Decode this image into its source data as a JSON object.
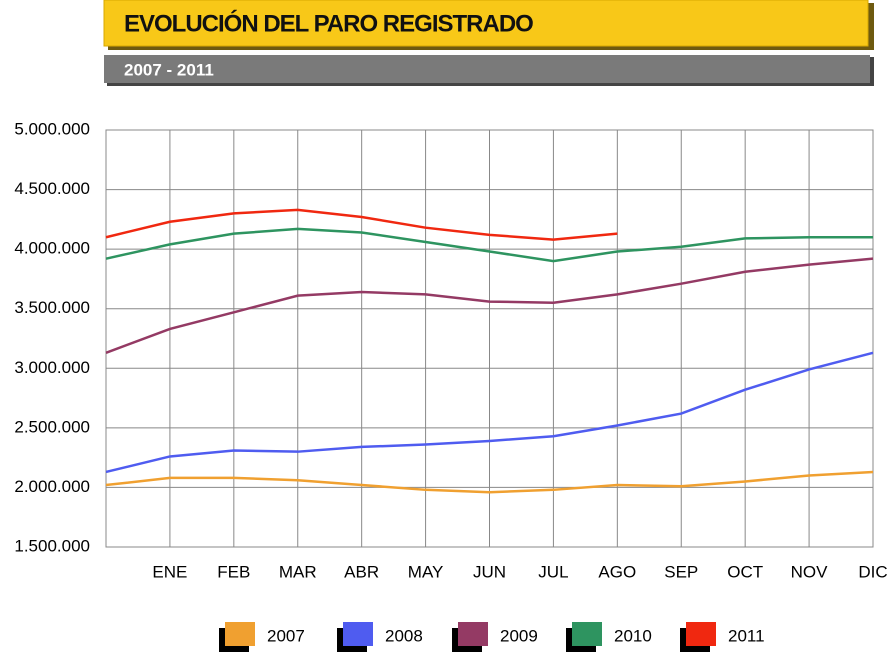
{
  "chart_data": {
    "type": "line",
    "title": "EVOLUCIÓN DEL PARO REGISTRADO",
    "subtitle": "2007 - 2011",
    "categories": [
      null,
      "ENE",
      "FEB",
      "MAR",
      "ABR",
      "MAY",
      "JUN",
      "JUL",
      "AGO",
      "SEP",
      "OCT",
      "NOV",
      "DIC"
    ],
    "ylim": [
      1500000,
      5000000
    ],
    "yticks": [
      {
        "value": 1500000,
        "label": "1.500.000"
      },
      {
        "value": 2000000,
        "label": "2.000.000"
      },
      {
        "value": 2500000,
        "label": "2.500.000"
      },
      {
        "value": 3000000,
        "label": "3.000.000"
      },
      {
        "value": 3500000,
        "label": "3.500.000"
      },
      {
        "value": 4000000,
        "label": "4.000.000"
      },
      {
        "value": 4500000,
        "label": "4.500.000"
      },
      {
        "value": 5000000,
        "label": "5.000.000"
      }
    ],
    "grid": true,
    "legend": "bottom",
    "series": [
      {
        "name": "2007",
        "color": "#f0a030",
        "values": [
          2020000,
          2080000,
          2080000,
          2060000,
          2020000,
          1980000,
          1960000,
          1980000,
          2020000,
          2010000,
          2050000,
          2100000,
          2130000
        ]
      },
      {
        "name": "2008",
        "color": "#4f5cf0",
        "values": [
          2130000,
          2260000,
          2310000,
          2300000,
          2340000,
          2360000,
          2390000,
          2430000,
          2520000,
          2620000,
          2820000,
          2990000,
          3130000
        ]
      },
      {
        "name": "2009",
        "color": "#943a64",
        "values": [
          3130000,
          3330000,
          3470000,
          3610000,
          3640000,
          3620000,
          3560000,
          3550000,
          3620000,
          3710000,
          3810000,
          3870000,
          3920000
        ]
      },
      {
        "name": "2010",
        "color": "#2e9460",
        "values": [
          3920000,
          4040000,
          4130000,
          4170000,
          4140000,
          4060000,
          3980000,
          3900000,
          3980000,
          4020000,
          4090000,
          4100000,
          4100000
        ]
      },
      {
        "name": "2011",
        "color": "#f02810",
        "values": [
          4100000,
          4230000,
          4300000,
          4330000,
          4270000,
          4180000,
          4120000,
          4080000,
          4130000,
          null,
          null,
          null,
          null
        ]
      }
    ]
  }
}
